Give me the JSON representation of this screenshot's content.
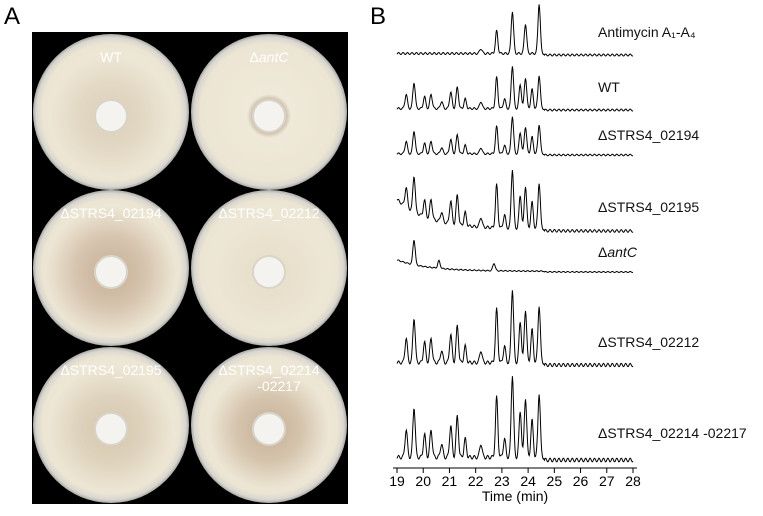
{
  "panels": {
    "a": {
      "label": "A",
      "plates": [
        {
          "label": "WT"
        },
        {
          "prefix": "Δ",
          "name": "antC"
        },
        {
          "label": "ΔSTRS4_02194"
        },
        {
          "label": "ΔSTRS4_02212"
        },
        {
          "label": "ΔSTRS4_02195"
        },
        {
          "label": "ΔSTRS4_02214",
          "label2": "-02217"
        }
      ]
    },
    "b": {
      "label": "B",
      "traces": [
        {
          "label": "Antimycin A₁-A₄"
        },
        {
          "label": "WT"
        },
        {
          "label": "ΔSTRS4_02194"
        },
        {
          "label": "ΔSTRS4_02195"
        },
        {
          "prefix": "Δ",
          "name": "antC"
        },
        {
          "label": "ΔSTRS4_02212"
        },
        {
          "label": "ΔSTRS4_02214 -02217"
        }
      ],
      "x_label": "Time (min)",
      "xlim": [
        19,
        28
      ],
      "xticks": [
        19,
        20,
        21,
        22,
        23,
        24,
        25,
        26,
        27,
        28
      ]
    }
  }
}
